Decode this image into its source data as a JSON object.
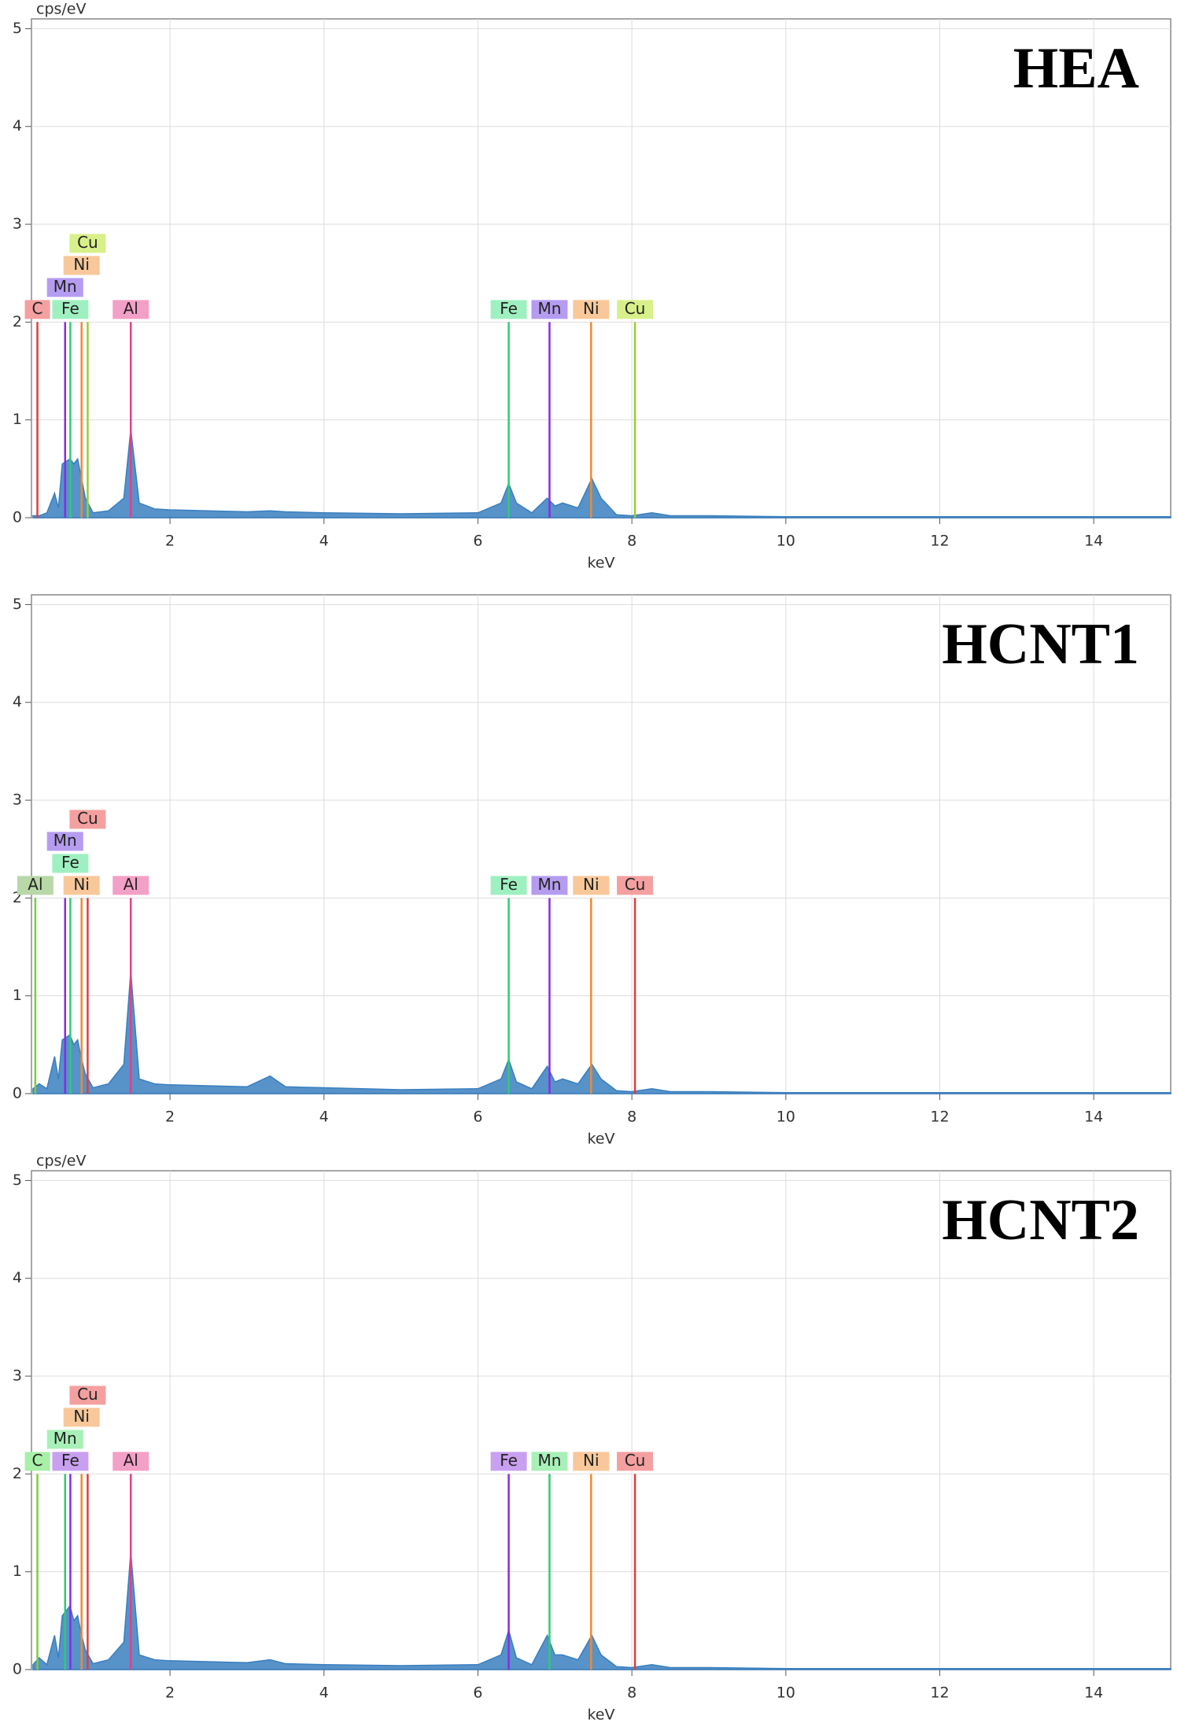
{
  "chart_data": [
    {
      "type": "spectrum",
      "title": "HEA",
      "y_label": "cps/eV",
      "x_label": "keV",
      "xlim": [
        0.2,
        15
      ],
      "ylim": [
        0,
        5.1
      ],
      "xticks": [
        2,
        4,
        6,
        8,
        10,
        12,
        14
      ],
      "yticks": [
        0,
        1,
        2,
        3,
        4,
        5
      ],
      "grid": true,
      "color": "#3a7fc0",
      "marker_height": 2,
      "x": [
        0.22,
        0.3,
        0.4,
        0.5,
        0.55,
        0.6,
        0.7,
        0.75,
        0.8,
        0.85,
        0.9,
        1.0,
        1.2,
        1.4,
        1.49,
        1.6,
        1.8,
        2,
        3,
        3.3,
        3.5,
        4,
        5,
        6,
        6.3,
        6.4,
        6.5,
        6.7,
        6.9,
        7.0,
        7.1,
        7.3,
        7.48,
        7.6,
        7.8,
        8.0,
        8.26,
        8.5,
        9,
        10,
        12,
        14,
        15
      ],
      "values": [
        0.02,
        0.02,
        0.05,
        0.25,
        0.1,
        0.55,
        0.6,
        0.55,
        0.6,
        0.4,
        0.2,
        0.05,
        0.07,
        0.2,
        0.9,
        0.15,
        0.09,
        0.08,
        0.06,
        0.07,
        0.06,
        0.05,
        0.04,
        0.05,
        0.15,
        0.35,
        0.15,
        0.05,
        0.2,
        0.12,
        0.15,
        0.1,
        0.4,
        0.2,
        0.03,
        0.02,
        0.05,
        0.02,
        0.02,
        0.01,
        0.01,
        0.01,
        0.01
      ],
      "markers": [
        {
          "label": "C",
          "energy": 0.277,
          "color": "#e03c3c",
          "label_color": "#f4a0a0"
        },
        {
          "label": "Fe",
          "energy": 0.705,
          "color": "#2ecc71",
          "label_color": "#9ff0c0"
        },
        {
          "label": "Mn",
          "energy": 0.637,
          "color": "#8a2be2",
          "label_color": "#b59cf0"
        },
        {
          "label": "Ni",
          "energy": 0.851,
          "color": "#f08a30",
          "label_color": "#f8c89a"
        },
        {
          "label": "Cu",
          "energy": 0.93,
          "color": "#9acd32",
          "label_color": "#d8f08a"
        },
        {
          "label": "Al",
          "energy": 1.49,
          "color": "#e0408a",
          "label_color": "#f3a0c8"
        },
        {
          "label": "Fe",
          "energy": 6.4,
          "color": "#2ecc71",
          "label_color": "#9ff0c0"
        },
        {
          "label": "Mn",
          "energy": 6.93,
          "color": "#8a2be2",
          "label_color": "#b59cf0"
        },
        {
          "label": "Ni",
          "energy": 7.47,
          "color": "#f08a30",
          "label_color": "#f8c89a"
        },
        {
          "label": "Cu",
          "energy": 8.04,
          "color": "#9acd32",
          "label_color": "#d8f08a"
        }
      ]
    },
    {
      "type": "spectrum",
      "title": "HCNT1",
      "x_label": "keV",
      "xlim": [
        0.2,
        15
      ],
      "ylim": [
        0,
        5.1
      ],
      "xticks": [
        2,
        4,
        6,
        8,
        10,
        12,
        14
      ],
      "yticks": [
        0,
        1,
        2,
        3,
        4,
        5
      ],
      "grid": true,
      "color": "#3a7fc0",
      "marker_height": 2,
      "x": [
        0.22,
        0.3,
        0.4,
        0.5,
        0.55,
        0.6,
        0.7,
        0.75,
        0.8,
        0.85,
        0.9,
        1.0,
        1.2,
        1.4,
        1.49,
        1.6,
        1.8,
        2,
        3,
        3.3,
        3.5,
        4,
        5,
        6,
        6.3,
        6.4,
        6.5,
        6.7,
        6.9,
        7.0,
        7.1,
        7.3,
        7.48,
        7.6,
        7.8,
        8.0,
        8.26,
        8.5,
        9,
        10,
        12,
        14,
        15
      ],
      "values": [
        0.05,
        0.1,
        0.05,
        0.38,
        0.15,
        0.55,
        0.6,
        0.5,
        0.55,
        0.35,
        0.2,
        0.06,
        0.1,
        0.3,
        1.25,
        0.15,
        0.1,
        0.09,
        0.07,
        0.18,
        0.07,
        0.06,
        0.04,
        0.05,
        0.15,
        0.35,
        0.12,
        0.05,
        0.28,
        0.12,
        0.15,
        0.1,
        0.3,
        0.15,
        0.03,
        0.02,
        0.05,
        0.02,
        0.02,
        0.01,
        0.01,
        0.01,
        0.01
      ],
      "markers": [
        {
          "label": "Al",
          "energy": 0.25,
          "color": "#7ccd3c",
          "label_color": "#b8d8a8"
        },
        {
          "label": "Fe",
          "energy": 0.705,
          "color": "#2ecc71",
          "label_color": "#9ff0c0"
        },
        {
          "label": "Mn",
          "energy": 0.637,
          "color": "#8a2be2",
          "label_color": "#b59cf0"
        },
        {
          "label": "Ni",
          "energy": 0.851,
          "color": "#f08a30",
          "label_color": "#f8c89a"
        },
        {
          "label": "Cu",
          "energy": 0.93,
          "color": "#e03c3c",
          "label_color": "#f4a0a0"
        },
        {
          "label": "Al",
          "energy": 1.49,
          "color": "#e0408a",
          "label_color": "#f3a0c8"
        },
        {
          "label": "Fe",
          "energy": 6.4,
          "color": "#2ecc71",
          "label_color": "#9ff0c0"
        },
        {
          "label": "Mn",
          "energy": 6.93,
          "color": "#8a2be2",
          "label_color": "#b59cf0"
        },
        {
          "label": "Ni",
          "energy": 7.47,
          "color": "#f08a30",
          "label_color": "#f8c89a"
        },
        {
          "label": "Cu",
          "energy": 8.04,
          "color": "#e03c3c",
          "label_color": "#f4a0a0"
        }
      ]
    },
    {
      "type": "spectrum",
      "title": "HCNT2",
      "y_label": "cps/eV",
      "x_label": "keV",
      "xlim": [
        0.2,
        15
      ],
      "ylim": [
        0,
        5.1
      ],
      "xticks": [
        2,
        4,
        6,
        8,
        10,
        12,
        14
      ],
      "yticks": [
        0,
        1,
        2,
        3,
        4,
        5
      ],
      "grid": true,
      "color": "#3a7fc0",
      "marker_height": 2,
      "x": [
        0.22,
        0.3,
        0.4,
        0.5,
        0.55,
        0.6,
        0.7,
        0.75,
        0.8,
        0.85,
        0.9,
        1.0,
        1.2,
        1.4,
        1.49,
        1.6,
        1.8,
        2,
        3,
        3.3,
        3.5,
        4,
        5,
        6,
        6.3,
        6.4,
        6.5,
        6.7,
        6.9,
        7.0,
        7.1,
        7.3,
        7.48,
        7.6,
        7.8,
        8.0,
        8.26,
        8.5,
        9,
        10,
        12,
        14,
        15
      ],
      "values": [
        0.05,
        0.12,
        0.05,
        0.35,
        0.12,
        0.55,
        0.65,
        0.5,
        0.55,
        0.35,
        0.2,
        0.06,
        0.1,
        0.28,
        1.2,
        0.15,
        0.1,
        0.09,
        0.07,
        0.1,
        0.06,
        0.05,
        0.04,
        0.05,
        0.15,
        0.4,
        0.12,
        0.05,
        0.35,
        0.15,
        0.15,
        0.1,
        0.35,
        0.15,
        0.03,
        0.02,
        0.05,
        0.02,
        0.02,
        0.01,
        0.01,
        0.01,
        0.01
      ],
      "markers": [
        {
          "label": "C",
          "energy": 0.277,
          "color": "#7ccd3c",
          "label_color": "#a8f0a8"
        },
        {
          "label": "Fe",
          "energy": 0.705,
          "color": "#8a2be2",
          "label_color": "#c9a0f0"
        },
        {
          "label": "Mn",
          "energy": 0.637,
          "color": "#2ecc71",
          "label_color": "#a8f0b8"
        },
        {
          "label": "Ni",
          "energy": 0.851,
          "color": "#f08a30",
          "label_color": "#f8c89a"
        },
        {
          "label": "Cu",
          "energy": 0.93,
          "color": "#e03c3c",
          "label_color": "#f4a0a0"
        },
        {
          "label": "Al",
          "energy": 1.49,
          "color": "#e0408a",
          "label_color": "#f3a0c8"
        },
        {
          "label": "Fe",
          "energy": 6.4,
          "color": "#8a2be2",
          "label_color": "#c9a0f0"
        },
        {
          "label": "Mn",
          "energy": 6.93,
          "color": "#2ecc71",
          "label_color": "#a8f0b8"
        },
        {
          "label": "Ni",
          "energy": 7.47,
          "color": "#f08a30",
          "label_color": "#f8c89a"
        },
        {
          "label": "Cu",
          "energy": 8.04,
          "color": "#e03c3c",
          "label_color": "#f4a0a0"
        }
      ]
    }
  ]
}
